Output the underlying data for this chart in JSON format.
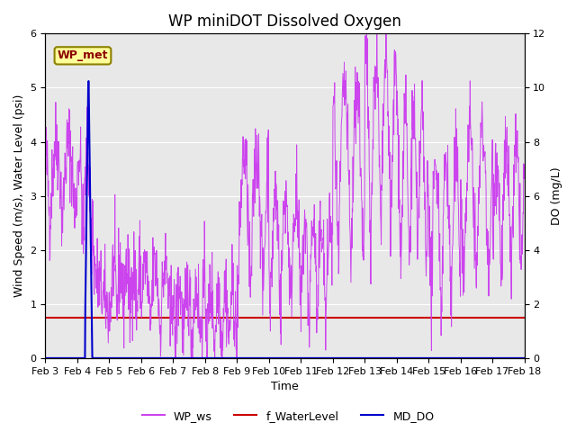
{
  "title": "WP miniDOT Dissolved Oxygen",
  "ylabel_left": "Wind Speed (m/s), Water Level (psi)",
  "ylabel_right": "DO (mg/L)",
  "xlabel": "Time",
  "ylim_left": [
    0.0,
    6.0
  ],
  "ylim_right": [
    0.0,
    12.0
  ],
  "background_color": "#e8e8e8",
  "legend_label": "WP_met",
  "legend_bbox_facecolor": "#ffff99",
  "legend_bbox_edgecolor": "#8B8000",
  "WP_ws_color": "#cc44ee",
  "WP_ws_linewidth": 0.7,
  "f_WaterLevel_color": "#cc0000",
  "f_WaterLevel_linewidth": 1.5,
  "MD_DO_color": "#0000cc",
  "MD_DO_linewidth": 1.5,
  "xticks": [
    3,
    4,
    5,
    6,
    7,
    8,
    9,
    10,
    11,
    12,
    13,
    14,
    15,
    16,
    17,
    18
  ],
  "xtick_labels": [
    "Feb 3",
    "Feb 4",
    "Feb 5",
    "Feb 6",
    "Feb 7",
    "Feb 8",
    "Feb 9",
    "Feb 10",
    "Feb 11",
    "Feb 12",
    "Feb 13",
    "Feb 14",
    "Feb 15",
    "Feb 16",
    "Feb 17",
    "Feb 18"
  ],
  "xlim": [
    3.0,
    18.0
  ],
  "grid_color": "#ffffff",
  "legend_entries": [
    {
      "label": "WP_ws",
      "color": "#cc44ee"
    },
    {
      "label": "f_WaterLevel",
      "color": "#cc0000"
    },
    {
      "label": "MD_DO",
      "color": "#0000cc"
    }
  ],
  "title_fontsize": 12,
  "axis_label_fontsize": 9,
  "tick_fontsize": 8,
  "f_WaterLevel_y": 0.75
}
